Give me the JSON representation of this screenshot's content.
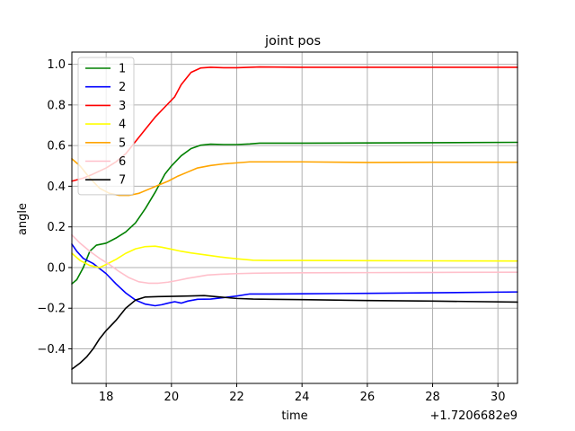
{
  "chart_data": {
    "type": "line",
    "title": "joint pos",
    "xlabel": "time",
    "ylabel": "angle",
    "x_offset_label": "+1.7206682e9",
    "xlim": [
      16.95,
      30.6
    ],
    "ylim": [
      -0.57,
      1.06
    ],
    "xticks": [
      18,
      20,
      22,
      24,
      26,
      28,
      30
    ],
    "yticks": [
      -0.4,
      -0.2,
      0.0,
      0.2,
      0.4,
      0.6,
      0.8,
      1.0
    ],
    "xtick_labels": [
      "18",
      "20",
      "22",
      "24",
      "26",
      "28",
      "30"
    ],
    "ytick_labels": [
      "−0.4",
      "−0.2",
      "0.0",
      "0.2",
      "0.4",
      "0.6",
      "0.8",
      "1.0"
    ],
    "grid": true,
    "legend_position": "top-left",
    "series": [
      {
        "name": "1",
        "color": "#008000",
        "x": [
          16.95,
          17.1,
          17.3,
          17.5,
          17.7,
          18.0,
          18.3,
          18.6,
          18.9,
          19.2,
          19.5,
          19.8,
          20.0,
          20.3,
          20.6,
          20.9,
          21.2,
          21.6,
          22.0,
          22.4,
          22.7,
          24.0,
          26.0,
          28.0,
          30.6
        ],
        "y": [
          -0.08,
          -0.06,
          0.0,
          0.08,
          0.11,
          0.12,
          0.145,
          0.175,
          0.22,
          0.29,
          0.37,
          0.46,
          0.5,
          0.55,
          0.585,
          0.602,
          0.607,
          0.605,
          0.605,
          0.608,
          0.612,
          0.612,
          0.613,
          0.614,
          0.616
        ]
      },
      {
        "name": "2",
        "color": "#0000ff",
        "x": [
          16.95,
          17.1,
          17.3,
          17.6,
          18.0,
          18.3,
          18.6,
          18.9,
          19.2,
          19.5,
          19.7,
          19.9,
          20.1,
          20.3,
          20.5,
          20.8,
          21.2,
          21.6,
          22.0,
          22.4,
          23.0,
          24.0,
          26.0,
          28.0,
          30.6
        ],
        "y": [
          0.115,
          0.08,
          0.045,
          0.02,
          -0.03,
          -0.08,
          -0.125,
          -0.16,
          -0.18,
          -0.188,
          -0.183,
          -0.175,
          -0.168,
          -0.175,
          -0.165,
          -0.156,
          -0.155,
          -0.148,
          -0.14,
          -0.13,
          -0.13,
          -0.129,
          -0.127,
          -0.124,
          -0.12
        ]
      },
      {
        "name": "3",
        "color": "#ff0000",
        "x": [
          16.95,
          17.3,
          17.6,
          18.0,
          18.3,
          18.6,
          18.9,
          19.2,
          19.5,
          19.8,
          20.1,
          20.3,
          20.6,
          20.9,
          21.2,
          21.6,
          22.0,
          22.4,
          22.7,
          24.0,
          26.0,
          28.0,
          30.6
        ],
        "y": [
          0.425,
          0.44,
          0.46,
          0.49,
          0.52,
          0.56,
          0.62,
          0.68,
          0.74,
          0.79,
          0.84,
          0.9,
          0.96,
          0.982,
          0.985,
          0.983,
          0.983,
          0.985,
          0.987,
          0.985,
          0.985,
          0.985,
          0.985
        ]
      },
      {
        "name": "4",
        "color": "#ffff00",
        "x": [
          16.95,
          17.2,
          17.5,
          17.8,
          18.0,
          18.3,
          18.6,
          18.9,
          19.2,
          19.5,
          19.7,
          20.0,
          20.3,
          20.6,
          21.0,
          21.5,
          22.0,
          22.5,
          23.0,
          24.0,
          26.0,
          28.0,
          30.6
        ],
        "y": [
          0.07,
          0.035,
          0.01,
          0.0,
          0.015,
          0.04,
          0.07,
          0.092,
          0.103,
          0.105,
          0.1,
          0.09,
          0.08,
          0.072,
          0.063,
          0.052,
          0.043,
          0.036,
          0.035,
          0.035,
          0.034,
          0.033,
          0.032
        ]
      },
      {
        "name": "5",
        "color": "#ffa500",
        "x": [
          16.95,
          17.2,
          17.5,
          17.8,
          18.1,
          18.4,
          18.7,
          19.0,
          19.3,
          19.6,
          19.9,
          20.2,
          20.5,
          20.8,
          21.2,
          21.6,
          22.0,
          22.4,
          23.0,
          24.0,
          26.0,
          28.0,
          30.6
        ],
        "y": [
          0.535,
          0.5,
          0.44,
          0.39,
          0.365,
          0.355,
          0.355,
          0.365,
          0.385,
          0.405,
          0.425,
          0.45,
          0.47,
          0.49,
          0.502,
          0.51,
          0.515,
          0.52,
          0.52,
          0.52,
          0.517,
          0.518,
          0.518
        ]
      },
      {
        "name": "6",
        "color": "#ffc0cb",
        "x": [
          16.95,
          17.2,
          17.5,
          17.8,
          18.1,
          18.4,
          18.7,
          19.0,
          19.3,
          19.6,
          19.9,
          20.2,
          20.5,
          20.8,
          21.1,
          21.5,
          22.0,
          22.5,
          23.0,
          24.0,
          26.0,
          28.0,
          30.6
        ],
        "y": [
          0.16,
          0.12,
          0.08,
          0.045,
          0.015,
          -0.02,
          -0.05,
          -0.07,
          -0.077,
          -0.077,
          -0.072,
          -0.063,
          -0.053,
          -0.045,
          -0.037,
          -0.033,
          -0.03,
          -0.028,
          -0.027,
          -0.026,
          -0.025,
          -0.024,
          -0.023
        ]
      },
      {
        "name": "7",
        "color": "#000000",
        "x": [
          16.95,
          17.2,
          17.4,
          17.6,
          17.8,
          18.0,
          18.3,
          18.6,
          18.9,
          19.2,
          19.6,
          20.0,
          20.5,
          21.0,
          21.5,
          22.0,
          22.5,
          23.0,
          24.0,
          26.0,
          28.0,
          30.6
        ],
        "y": [
          -0.5,
          -0.47,
          -0.44,
          -0.4,
          -0.35,
          -0.31,
          -0.26,
          -0.2,
          -0.16,
          -0.145,
          -0.143,
          -0.142,
          -0.14,
          -0.138,
          -0.145,
          -0.152,
          -0.155,
          -0.156,
          -0.158,
          -0.162,
          -0.165,
          -0.17
        ]
      }
    ]
  }
}
